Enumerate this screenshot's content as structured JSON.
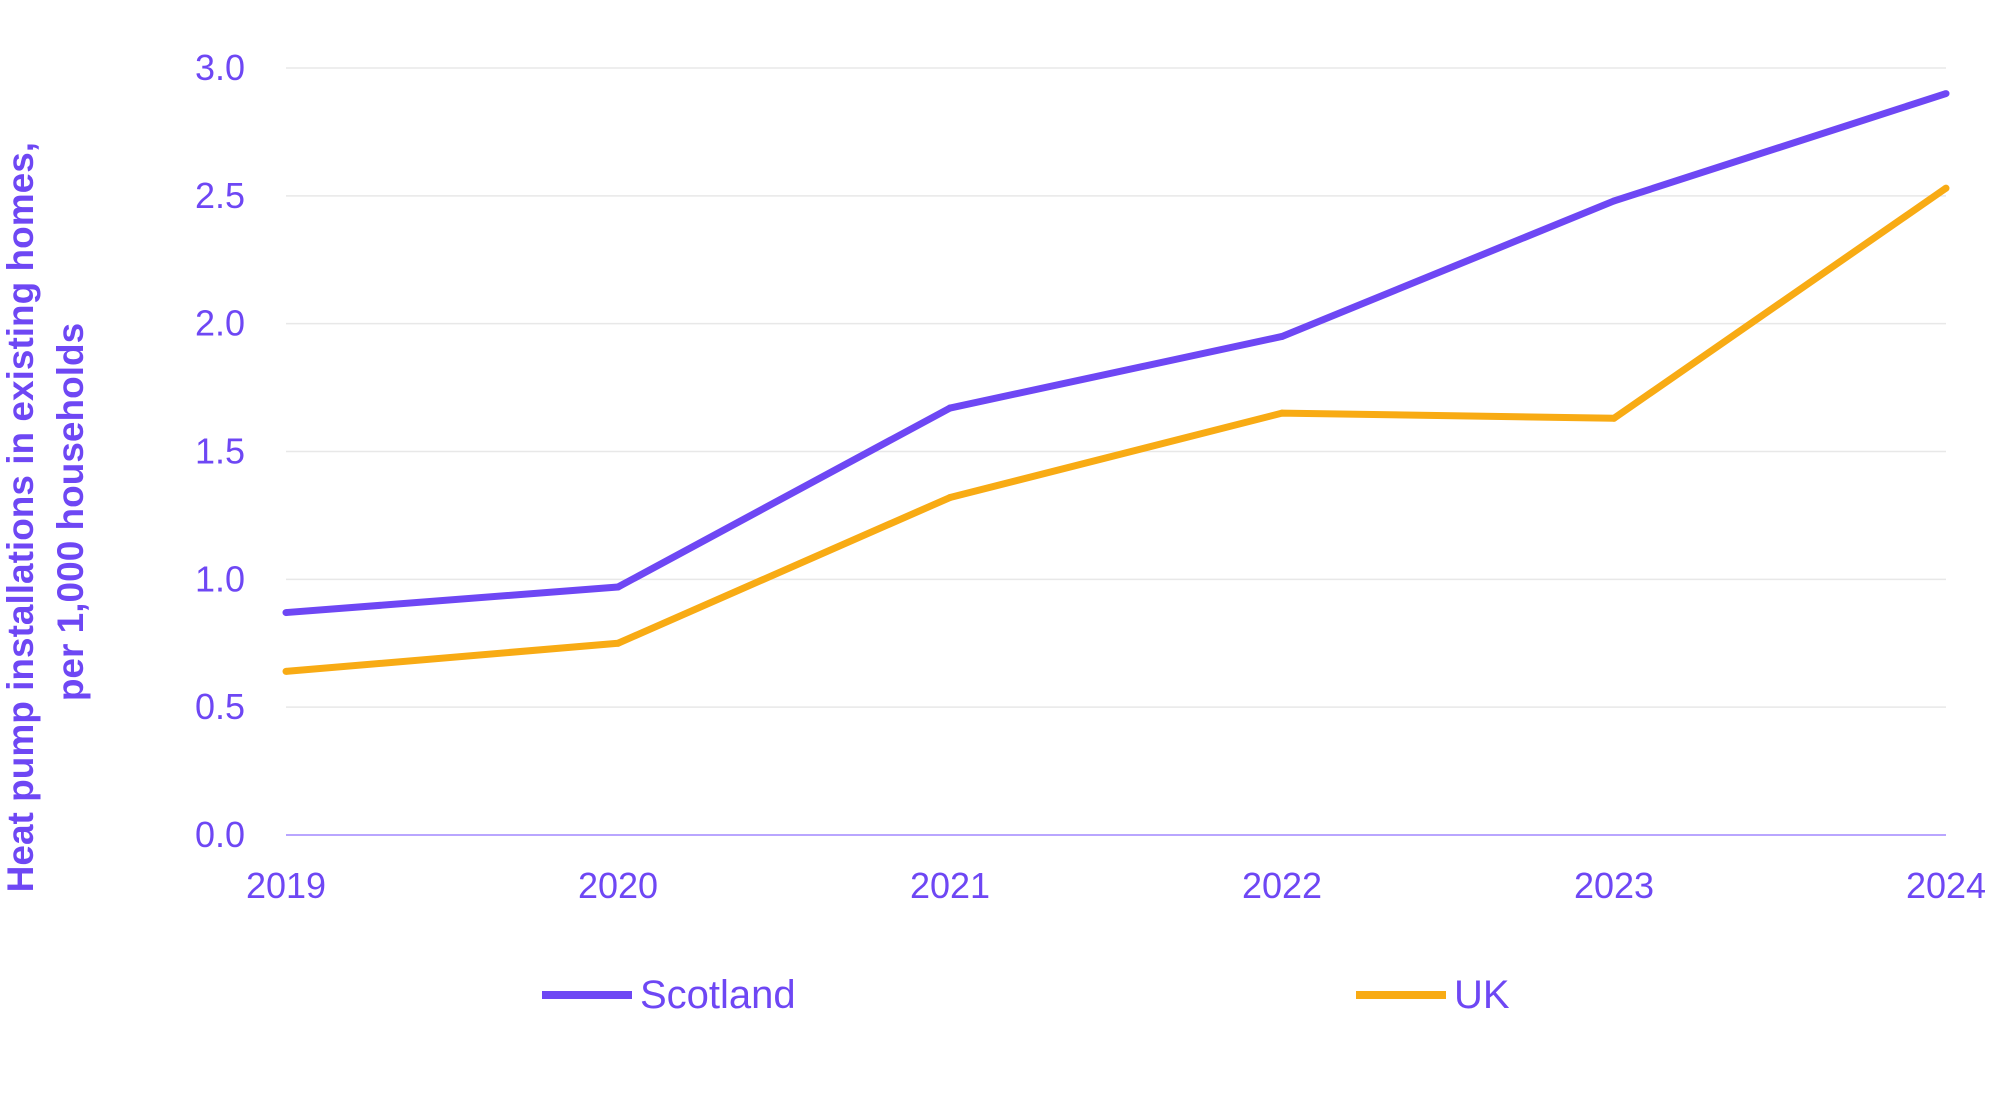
{
  "chart_data": {
    "type": "line",
    "title": "",
    "xlabel": "",
    "ylabel": "Heat pump installations in existing homes, per 1,000 households",
    "ylabel_lines": [
      "Heat pump installations in existing homes,",
      "per 1,000 households"
    ],
    "x": [
      "2019",
      "2020",
      "2021",
      "2022",
      "2023",
      "2024"
    ],
    "ylim": [
      0,
      3.0
    ],
    "yticks": [
      "0.0",
      "0.5",
      "1.0",
      "1.5",
      "2.0",
      "2.5",
      "3.0"
    ],
    "grid": true,
    "legend_position": "bottom",
    "series": [
      {
        "name": "Scotland",
        "color": "#6e47f4",
        "values": [
          0.87,
          0.97,
          1.67,
          1.95,
          2.48,
          2.9
        ]
      },
      {
        "name": "UK",
        "color": "#f8ab14",
        "values": [
          0.64,
          0.75,
          1.32,
          1.65,
          1.63,
          2.53
        ]
      }
    ]
  },
  "colors": {
    "text": "#6e47f4",
    "grid": "#e8e8e8",
    "axis": "#b9a6ff"
  }
}
